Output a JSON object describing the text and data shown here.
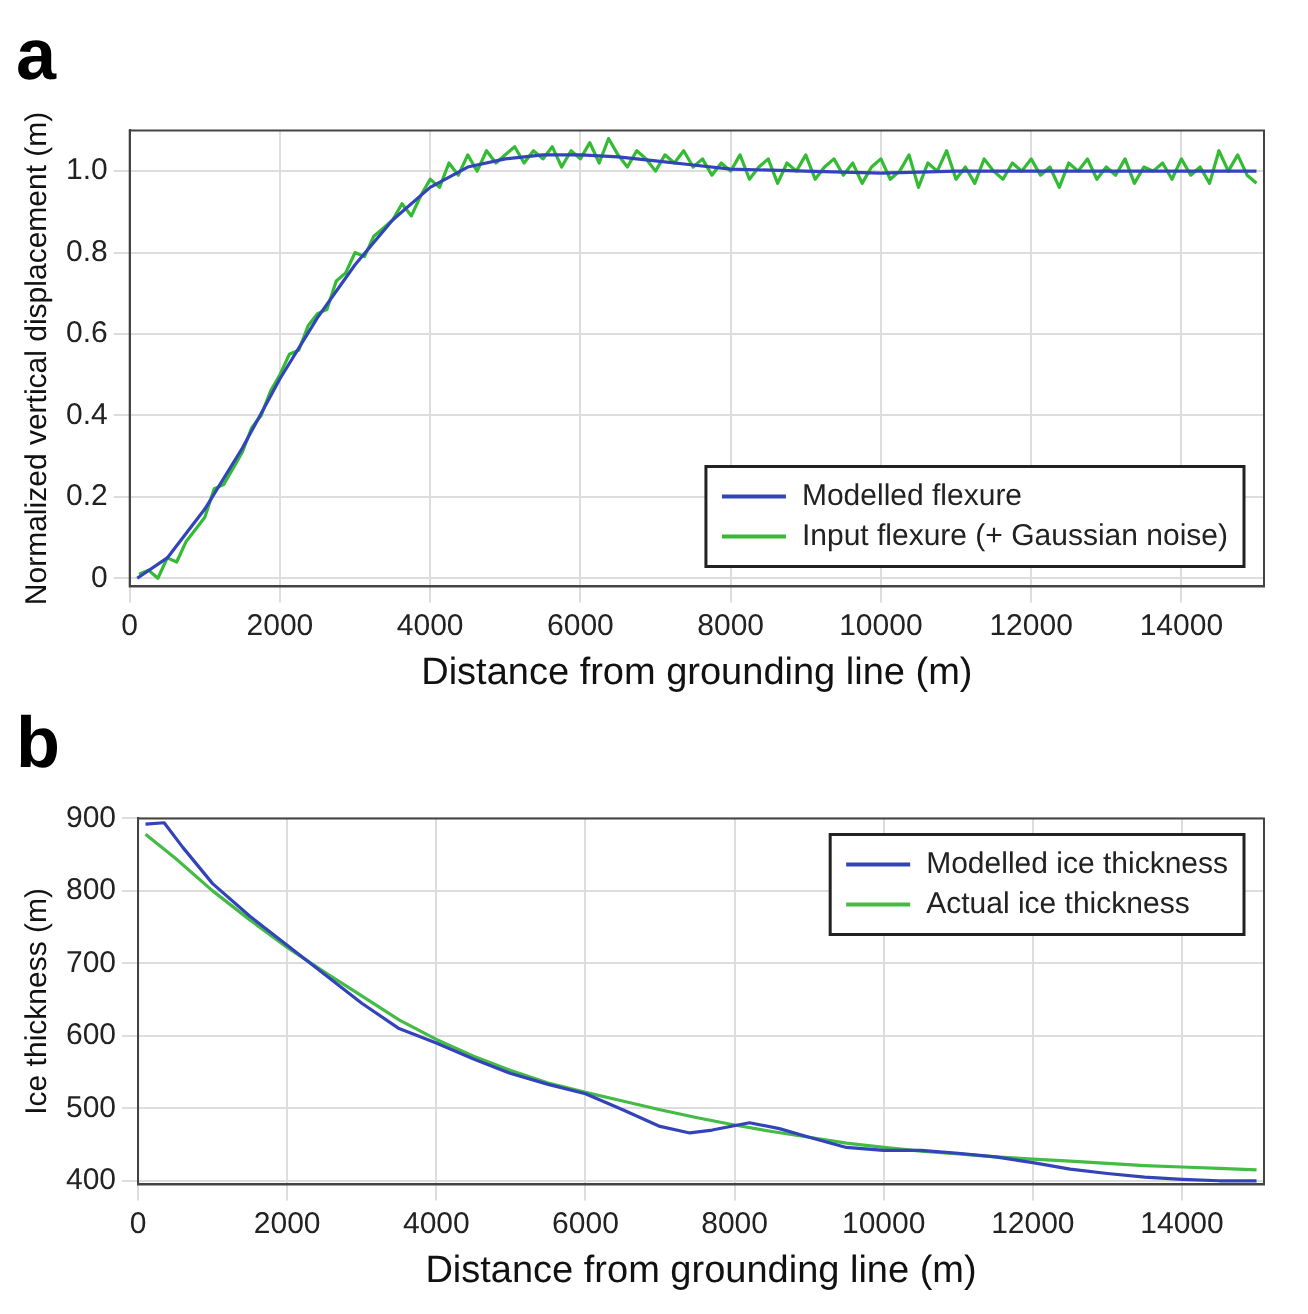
{
  "chart_data": [
    {
      "type": "line",
      "title": "a",
      "xlabel": "Distance from grounding line (m)",
      "ylabel": "Normalized vertical displacement (m)",
      "xlim": [
        0,
        15100
      ],
      "xticks": [
        0,
        2000,
        4000,
        6000,
        8000,
        10000,
        12000,
        14000
      ],
      "ylim": [
        -0.02,
        1.1
      ],
      "yticks": [
        0,
        0.2,
        0.4,
        0.6,
        0.8,
        {
          "value": 1,
          "label": "1.0"
        }
      ],
      "grid": true,
      "legend": "bottom right",
      "marker": "none",
      "line_style": "solid",
      "series": [
        {
          "name": "Modelled flexure",
          "color": "#3344bb",
          "x": [
            100,
            500,
            1000,
            1500,
            2000,
            2500,
            3000,
            3500,
            4000,
            4500,
            5000,
            5500,
            6000,
            6500,
            7000,
            7500,
            8000,
            9000,
            10000,
            11000,
            12000,
            13000,
            14000,
            15000
          ],
          "values": [
            0.0,
            0.05,
            0.17,
            0.32,
            0.49,
            0.64,
            0.77,
            0.88,
            0.96,
            1.01,
            1.03,
            1.04,
            1.04,
            1.035,
            1.025,
            1.015,
            1.005,
            1.0,
            0.995,
            1.0,
            1.0,
            1.0,
            1.0,
            1.0
          ]
        },
        {
          "name": "Input flexure (+ Gaussian noise)",
          "color": "#33bb33",
          "x": [
            125,
            250,
            375,
            500,
            625,
            750,
            875,
            1000,
            1125,
            1250,
            1375,
            1500,
            1625,
            1750,
            1875,
            2000,
            2125,
            2250,
            2375,
            2500,
            2625,
            2750,
            2875,
            3000,
            3125,
            3250,
            3375,
            3500,
            3625,
            3750,
            3875,
            4000,
            4125,
            4250,
            4375,
            4500,
            4625,
            4750,
            4875,
            5000,
            5125,
            5250,
            5375,
            5500,
            5625,
            5750,
            5875,
            6000,
            6125,
            6250,
            6375,
            6500,
            6625,
            6750,
            6875,
            7000,
            7125,
            7250,
            7375,
            7500,
            7625,
            7750,
            7875,
            8000,
            8125,
            8250,
            8375,
            8500,
            8625,
            8750,
            8875,
            9000,
            9125,
            9250,
            9375,
            9500,
            9625,
            9750,
            9875,
            10000,
            10125,
            10250,
            10375,
            10500,
            10625,
            10750,
            10875,
            11000,
            11125,
            11250,
            11375,
            11500,
            11625,
            11750,
            11875,
            12000,
            12125,
            12250,
            12375,
            12500,
            12625,
            12750,
            12875,
            13000,
            13125,
            13250,
            13375,
            13500,
            13625,
            13750,
            13875,
            14000,
            14125,
            14250,
            14375,
            14500,
            14625,
            14750,
            14875,
            15000
          ],
          "values": [
            0.01,
            0.02,
            0.0,
            0.05,
            0.04,
            0.09,
            0.12,
            0.15,
            0.22,
            0.23,
            0.27,
            0.31,
            0.37,
            0.4,
            0.46,
            0.5,
            0.55,
            0.56,
            0.62,
            0.65,
            0.66,
            0.73,
            0.75,
            0.8,
            0.79,
            0.84,
            0.86,
            0.88,
            0.92,
            0.89,
            0.94,
            0.98,
            0.96,
            1.02,
            0.99,
            1.04,
            1.0,
            1.05,
            1.02,
            1.04,
            1.06,
            1.02,
            1.05,
            1.03,
            1.06,
            1.01,
            1.05,
            1.03,
            1.07,
            1.02,
            1.08,
            1.04,
            1.01,
            1.05,
            1.03,
            1.0,
            1.04,
            1.02,
            1.05,
            1.01,
            1.03,
            0.99,
            1.02,
            1.0,
            1.04,
            0.98,
            1.01,
            1.03,
            0.97,
            1.02,
            1.0,
            1.04,
            0.98,
            1.01,
            1.03,
            0.99,
            1.02,
            0.97,
            1.01,
            1.03,
            0.98,
            1.0,
            1.04,
            0.96,
            1.02,
            1.0,
            1.05,
            0.98,
            1.01,
            0.97,
            1.03,
            1.0,
            0.98,
            1.02,
            1.0,
            1.03,
            0.99,
            1.01,
            0.96,
            1.02,
            1.0,
            1.03,
            0.98,
            1.01,
            0.99,
            1.03,
            0.97,
            1.01,
            1.0,
            1.02,
            0.98,
            1.03,
            0.99,
            1.01,
            0.97,
            1.05,
            1.0,
            1.04,
            0.99,
            0.97
          ]
        }
      ]
    },
    {
      "type": "line",
      "title": "b",
      "xlabel": "Distance from grounding line (m)",
      "ylabel": "Ice thickness (m)",
      "xlim": [
        0,
        15100
      ],
      "xticks": [
        0,
        2000,
        4000,
        6000,
        8000,
        10000,
        12000,
        14000
      ],
      "ylim": [
        395,
        900
      ],
      "yticks": [
        400,
        500,
        600,
        700,
        800,
        900
      ],
      "grid": true,
      "legend": "top right",
      "marker": "none",
      "line_style": "solid",
      "series": [
        {
          "name": "Modelled ice thickness",
          "color": "#3344bb",
          "x": [
            100,
            350,
            600,
            1000,
            1500,
            2000,
            2500,
            3000,
            3500,
            4000,
            4500,
            5000,
            5500,
            6000,
            6500,
            7000,
            7400,
            7700,
            8200,
            8600,
            9000,
            9500,
            10000,
            10500,
            11000,
            11500,
            12000,
            12500,
            13000,
            13500,
            14000,
            14500,
            15000
          ],
          "values": [
            892,
            894,
            860,
            810,
            765,
            725,
            685,
            645,
            610,
            590,
            568,
            548,
            533,
            520,
            498,
            475,
            466,
            470,
            480,
            472,
            460,
            446,
            442,
            442,
            438,
            433,
            425,
            416,
            410,
            405,
            402,
            400,
            400
          ]
        },
        {
          "name": "Actual ice thickness",
          "color": "#44bb44",
          "x": [
            100,
            500,
            1000,
            1500,
            2000,
            2500,
            3000,
            3500,
            4000,
            4500,
            5000,
            5500,
            6000,
            6500,
            7000,
            7500,
            8000,
            8500,
            9000,
            9500,
            10000,
            10500,
            11000,
            11500,
            12000,
            12500,
            13000,
            13500,
            14000,
            14500,
            15000
          ],
          "values": [
            878,
            845,
            800,
            760,
            722,
            688,
            655,
            622,
            595,
            572,
            552,
            535,
            522,
            510,
            498,
            487,
            477,
            468,
            460,
            452,
            446,
            441,
            437,
            433,
            430,
            427,
            424,
            421,
            419,
            417,
            415
          ]
        }
      ]
    }
  ]
}
